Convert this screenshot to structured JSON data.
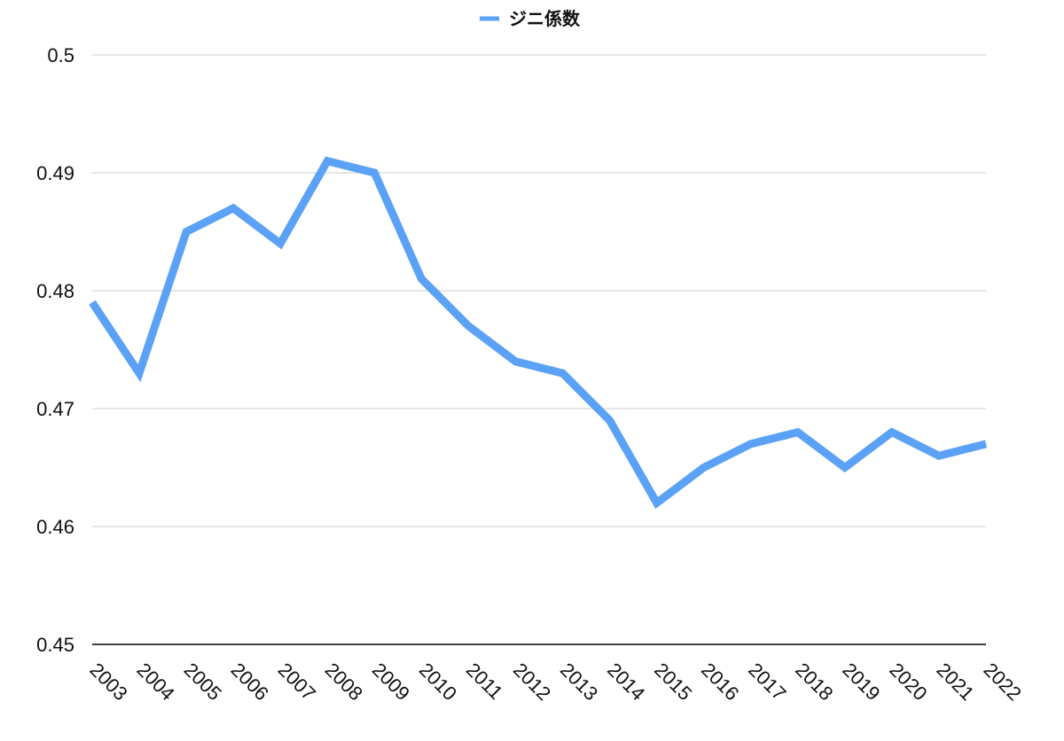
{
  "chart_data": {
    "type": "line",
    "title": "",
    "xlabel": "",
    "ylabel": "",
    "x": [
      "2003",
      "2004",
      "2005",
      "2006",
      "2007",
      "2008",
      "2009",
      "2010",
      "2011",
      "2012",
      "2013",
      "2014",
      "2015",
      "2016",
      "2017",
      "2018",
      "2019",
      "2020",
      "2021",
      "2022"
    ],
    "series": [
      {
        "name": "ジニ係数",
        "color": "#5BA2F6",
        "values": [
          0.479,
          0.473,
          0.485,
          0.487,
          0.484,
          0.491,
          0.49,
          0.481,
          0.477,
          0.474,
          0.473,
          0.469,
          0.462,
          0.465,
          0.467,
          0.468,
          0.465,
          0.468,
          0.466,
          0.467
        ]
      }
    ],
    "ylim": [
      0.45,
      0.5
    ],
    "yticks": [
      "0.45",
      "0.46",
      "0.47",
      "0.48",
      "0.49",
      "0.5"
    ],
    "grid": true,
    "legend_position": "top-center",
    "gridline_color": "#CCCCCC",
    "axis_color": "#000000"
  }
}
